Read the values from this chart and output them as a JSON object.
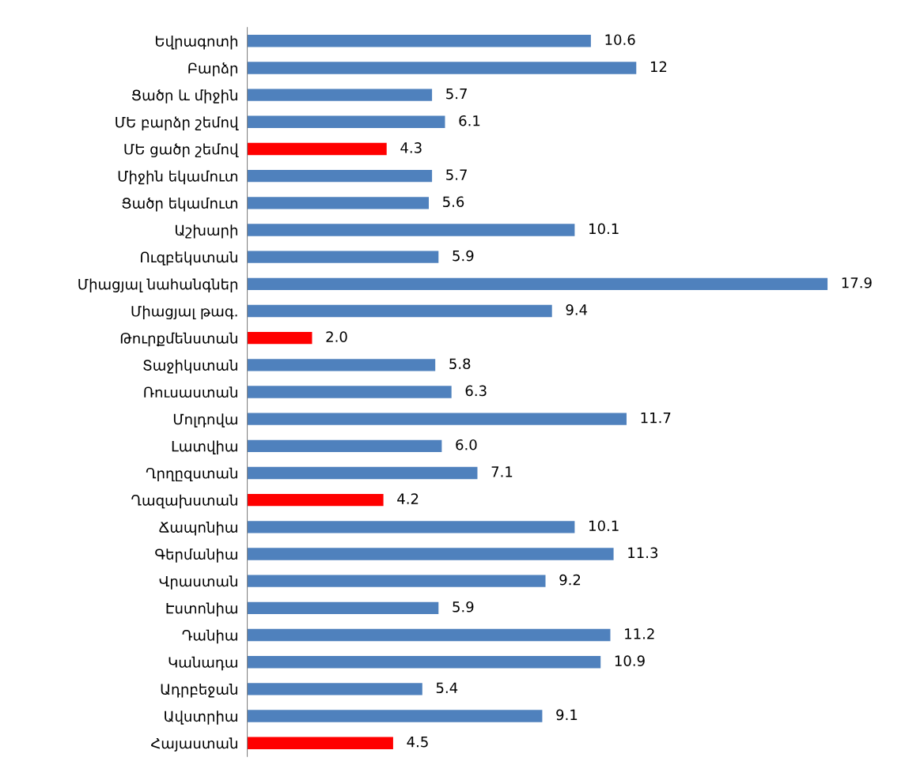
{
  "chart_data": {
    "type": "bar",
    "orientation": "horizontal",
    "categories": [
      "Եվրագոտի",
      "Բարձր",
      "Ցածր և միջին",
      "ՄԵ բարձր շեմով",
      "ՄԵ ցածր շեմով",
      "Միջին եկամուտ",
      "Ցածր եկամուտ",
      "Աշխարի",
      "Ուզբեկստան",
      "Միացյալ նահանգներ",
      "Միացյալ թագ.",
      "Թուրքմենստան",
      "Տաջիկստան",
      "Ռուսաստան",
      "Մոլդովա",
      "Լատվիա",
      "Ղրղըզստան",
      "Ղազախստան",
      "Ճապոնիա",
      "Գերմանիա",
      "Վրաստան",
      "Էստոնիա",
      "Դանիա",
      "Կանադա",
      "Ադրբեջան",
      "Ավստրիա",
      "Հայաստան"
    ],
    "values": [
      10.6,
      12,
      5.7,
      6.1,
      4.3,
      5.7,
      5.6,
      10.1,
      5.9,
      17.9,
      9.4,
      2.0,
      5.8,
      6.3,
      11.7,
      6.0,
      7.1,
      4.2,
      10.1,
      11.3,
      9.2,
      5.9,
      11.2,
      10.9,
      5.4,
      9.1,
      4.5
    ],
    "value_labels": [
      "10.6",
      "12",
      "5.7",
      "6.1",
      "4.3",
      "5.7",
      "5.6",
      "10.1",
      "5.9",
      "17.9",
      "9.4",
      "2.0",
      "5.8",
      "6.3",
      "11.7",
      "6.0",
      "7.1",
      "4.2",
      "10.1",
      "11.3",
      "9.2",
      "5.9",
      "11.2",
      "10.9",
      "5.4",
      "9.1",
      "4.5"
    ],
    "colors": [
      "#4f81bd",
      "#4f81bd",
      "#4f81bd",
      "#4f81bd",
      "#ff0000",
      "#4f81bd",
      "#4f81bd",
      "#4f81bd",
      "#4f81bd",
      "#4f81bd",
      "#4f81bd",
      "#ff0000",
      "#4f81bd",
      "#4f81bd",
      "#4f81bd",
      "#4f81bd",
      "#4f81bd",
      "#ff0000",
      "#4f81bd",
      "#4f81bd",
      "#4f81bd",
      "#4f81bd",
      "#4f81bd",
      "#4f81bd",
      "#4f81bd",
      "#4f81bd",
      "#ff0000"
    ],
    "grid": false,
    "legend": false
  }
}
